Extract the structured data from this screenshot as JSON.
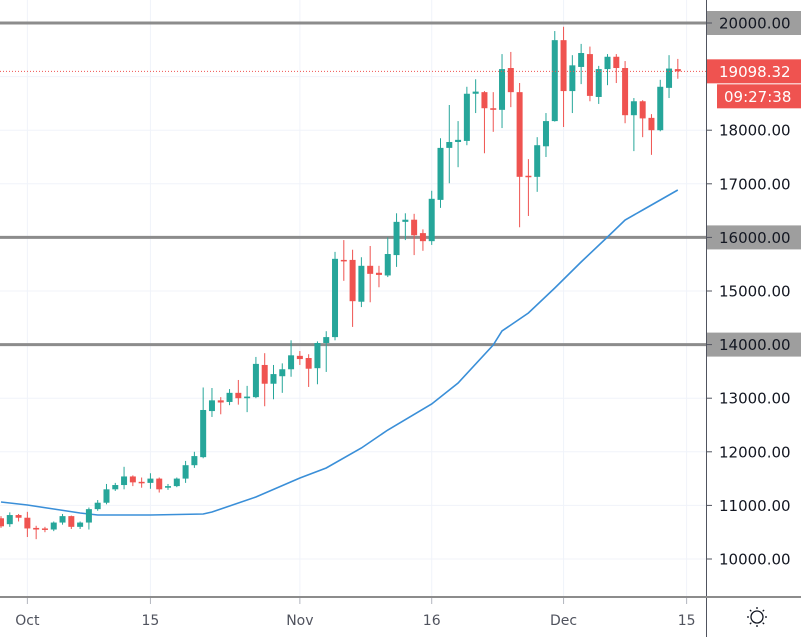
{
  "chart_data": {
    "type": "candlestick",
    "colors": {
      "up": "#26a69a",
      "down": "#ef5350",
      "ma": "#3a8fd8",
      "level_line": "#8c8c8c",
      "grid": "#f0f3fa"
    },
    "ylim": [
      9500,
      20400
    ],
    "grid": true,
    "price_ticks": [
      "20000.00",
      "18000.00",
      "17000.00",
      "16000.00",
      "15000.00",
      "14000.00",
      "13000.00",
      "12000.00",
      "11000.00",
      "10000.00"
    ],
    "price_tick_values": [
      20000,
      18000,
      17000,
      16000,
      15000,
      14000,
      13000,
      12000,
      11000,
      10000
    ],
    "horizontal_levels": [
      20000,
      16000,
      14000
    ],
    "last_price": {
      "value": 19098.32,
      "label": "19098.32",
      "countdown": "09:27:38"
    },
    "time_ticks": [
      {
        "date": "10-01",
        "label": "Oct"
      },
      {
        "date": "10-15",
        "label": "15"
      },
      {
        "date": "11-01",
        "label": "Nov"
      },
      {
        "date": "11-16",
        "label": "16"
      },
      {
        "date": "12-01",
        "label": "Dec"
      },
      {
        "date": "12-15",
        "label": "15"
      }
    ],
    "candles_fields": [
      "date",
      "open",
      "high",
      "low",
      "close"
    ],
    "candles": [
      [
        "09-28",
        10760,
        10800,
        10580,
        10610
      ],
      [
        "09-29",
        10650,
        10870,
        10600,
        10820
      ],
      [
        "09-30",
        10820,
        10840,
        10700,
        10770
      ],
      [
        "10-01",
        10770,
        10880,
        10410,
        10570
      ],
      [
        "10-02",
        10580,
        10620,
        10370,
        10550
      ],
      [
        "10-03",
        10570,
        10600,
        10500,
        10550
      ],
      [
        "10-04",
        10550,
        10700,
        10520,
        10680
      ],
      [
        "10-05",
        10680,
        10840,
        10640,
        10800
      ],
      [
        "10-06",
        10800,
        10810,
        10560,
        10600
      ],
      [
        "10-07",
        10600,
        10700,
        10560,
        10680
      ],
      [
        "10-08",
        10680,
        10960,
        10550,
        10930
      ],
      [
        "10-09",
        10930,
        11100,
        10900,
        11050
      ],
      [
        "10-10",
        11050,
        11400,
        11020,
        11300
      ],
      [
        "10-11",
        11300,
        11420,
        11270,
        11380
      ],
      [
        "10-12",
        11380,
        11720,
        11300,
        11540
      ],
      [
        "10-13",
        11540,
        11560,
        11360,
        11430
      ],
      [
        "10-14",
        11440,
        11520,
        11330,
        11420
      ],
      [
        "10-15",
        11420,
        11600,
        11310,
        11500
      ],
      [
        "10-16",
        11500,
        11520,
        11240,
        11300
      ],
      [
        "10-17",
        11330,
        11400,
        11290,
        11360
      ],
      [
        "10-18",
        11360,
        11520,
        11340,
        11500
      ],
      [
        "10-19",
        11500,
        11830,
        11420,
        11750
      ],
      [
        "10-20",
        11750,
        12000,
        11700,
        11920
      ],
      [
        "10-21",
        11900,
        13200,
        11880,
        12780
      ],
      [
        "10-22",
        12760,
        13190,
        12650,
        12960
      ],
      [
        "10-23",
        12960,
        13020,
        12700,
        12920
      ],
      [
        "10-24",
        12930,
        13170,
        12870,
        13100
      ],
      [
        "10-25",
        13100,
        13340,
        12880,
        13000
      ],
      [
        "10-26",
        13000,
        13230,
        12740,
        13030
      ],
      [
        "10-27",
        13020,
        13770,
        13000,
        13640
      ],
      [
        "10-28",
        13620,
        13840,
        12850,
        13270
      ],
      [
        "10-29",
        13270,
        13620,
        12980,
        13450
      ],
      [
        "10-30",
        13410,
        13650,
        13100,
        13540
      ],
      [
        "10-31",
        13540,
        14080,
        13400,
        13800
      ],
      [
        "11-01",
        13790,
        13880,
        13620,
        13730
      ],
      [
        "11-02",
        13750,
        13820,
        13210,
        13550
      ],
      [
        "11-03",
        13560,
        14060,
        13260,
        14030
      ],
      [
        "11-04",
        14030,
        14250,
        13490,
        14140
      ],
      [
        "11-05",
        14140,
        15730,
        14080,
        15600
      ],
      [
        "11-06",
        15580,
        15950,
        15190,
        15560
      ],
      [
        "11-07",
        15580,
        15770,
        14330,
        14810
      ],
      [
        "11-08",
        14800,
        15630,
        14700,
        15470
      ],
      [
        "11-09",
        15470,
        15840,
        14790,
        15320
      ],
      [
        "11-10",
        15340,
        15470,
        15070,
        15300
      ],
      [
        "11-11",
        15290,
        16000,
        15260,
        15690
      ],
      [
        "11-12",
        15670,
        16450,
        15450,
        16290
      ],
      [
        "11-13",
        16290,
        16450,
        15950,
        16330
      ],
      [
        "11-14",
        16330,
        16440,
        15670,
        16040
      ],
      [
        "11-15",
        16080,
        16150,
        15750,
        15930
      ],
      [
        "11-16",
        15930,
        16870,
        15860,
        16720
      ],
      [
        "11-17",
        16700,
        17850,
        16550,
        17670
      ],
      [
        "11-18",
        17670,
        18470,
        17010,
        17780
      ],
      [
        "11-19",
        17780,
        18170,
        17310,
        17820
      ],
      [
        "11-20",
        17800,
        18810,
        17720,
        18680
      ],
      [
        "11-21",
        18680,
        18950,
        18320,
        18720
      ],
      [
        "11-22",
        18710,
        18730,
        17570,
        18410
      ],
      [
        "11-23",
        18410,
        18710,
        17970,
        18380
      ],
      [
        "11-24",
        18380,
        19420,
        18040,
        19140
      ],
      [
        "11-25",
        19160,
        19460,
        18430,
        18710
      ],
      [
        "11-26",
        18710,
        18880,
        16190,
        17130
      ],
      [
        "11-27",
        17150,
        17460,
        16400,
        17140
      ],
      [
        "11-28",
        17130,
        17870,
        16850,
        17720
      ],
      [
        "11-29",
        17700,
        18320,
        17500,
        18170
      ],
      [
        "11-30",
        18170,
        19850,
        18160,
        19680
      ],
      [
        "12-01",
        19680,
        19930,
        18060,
        18730
      ],
      [
        "12-02",
        18730,
        19400,
        18320,
        19210
      ],
      [
        "12-03",
        19180,
        19610,
        18860,
        19440
      ],
      [
        "12-04",
        19420,
        19560,
        18540,
        18640
      ],
      [
        "12-05",
        18620,
        19200,
        18490,
        19140
      ],
      [
        "12-06",
        19140,
        19420,
        18840,
        19370
      ],
      [
        "12-07",
        19370,
        19420,
        18880,
        19160
      ],
      [
        "12-08",
        19160,
        19290,
        18130,
        18280
      ],
      [
        "12-09",
        18280,
        18600,
        17610,
        18540
      ],
      [
        "12-10",
        18540,
        18560,
        17870,
        18220
      ],
      [
        "12-11",
        18230,
        18300,
        17540,
        18000
      ],
      [
        "12-12",
        18000,
        18940,
        17980,
        18810
      ],
      [
        "12-13",
        18790,
        19400,
        18600,
        19150
      ],
      [
        "12-14",
        19140,
        19330,
        18960,
        19098.32
      ]
    ],
    "moving_average": [
      [
        "09-28",
        11063
      ],
      [
        "10-01",
        11007
      ],
      [
        "10-04",
        10933
      ],
      [
        "10-07",
        10858
      ],
      [
        "10-09",
        10820
      ],
      [
        "10-15",
        10820
      ],
      [
        "10-21",
        10840
      ],
      [
        "10-22",
        10877
      ],
      [
        "10-27",
        11156
      ],
      [
        "11-01",
        11511
      ],
      [
        "11-04",
        11697
      ],
      [
        "11-08",
        12070
      ],
      [
        "11-11",
        12406
      ],
      [
        "11-16",
        12891
      ],
      [
        "11-19",
        13283
      ],
      [
        "11-23",
        13992
      ],
      [
        "11-24",
        14254
      ],
      [
        "11-27",
        14590
      ],
      [
        "11-30",
        15056
      ],
      [
        "12-03",
        15541
      ],
      [
        "12-06",
        16007
      ],
      [
        "12-08",
        16325
      ],
      [
        "12-10",
        16511
      ],
      [
        "12-14",
        16884
      ]
    ]
  },
  "toolbar": {
    "settings_icon": "sun-icon"
  }
}
